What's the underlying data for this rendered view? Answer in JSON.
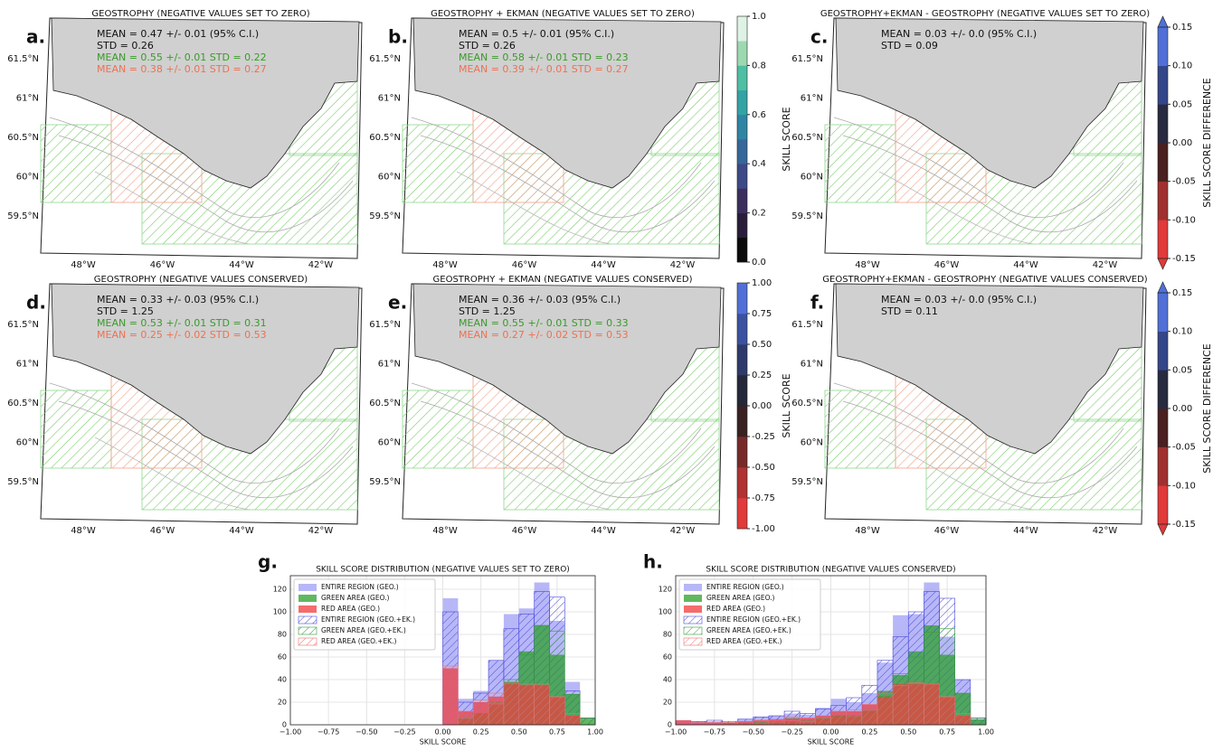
{
  "maps": [
    {
      "letter": "a.",
      "title": "GEOSTROPHY (NEGATIVE VALUES SET TO ZERO)",
      "stats": [
        {
          "text": "MEAN = 0.47 +/- 0.01 (95% C.I.)",
          "color": "#111111"
        },
        {
          "text": "STD = 0.26",
          "color": "#111111"
        },
        {
          "text": "MEAN = 0.55 +/- 0.01   STD = 0.22",
          "color": "#3a9a2a"
        },
        {
          "text": "MEAN = 0.38 +/- 0.01   STD = 0.27",
          "color": "#ef7050"
        }
      ]
    },
    {
      "letter": "b.",
      "title": "GEOSTROPHY + EKMAN (NEGATIVE VALUES SET TO ZERO)",
      "stats": [
        {
          "text": "MEAN = 0.5 +/- 0.01 (95% C.I.)",
          "color": "#111111"
        },
        {
          "text": "STD = 0.26",
          "color": "#111111"
        },
        {
          "text": "MEAN = 0.58 +/- 0.01   STD = 0.23",
          "color": "#3a9a2a"
        },
        {
          "text": "MEAN = 0.39 +/- 0.01   STD = 0.27",
          "color": "#ef7050"
        }
      ]
    },
    {
      "letter": "c.",
      "title": "GEOSTROPHY+EKMAN - GEOSTROPHY (NEGATIVE VALUES SET TO ZERO)",
      "stats": [
        {
          "text": "MEAN = 0.03 +/- 0.0 (95% C.I.)",
          "color": "#111111"
        },
        {
          "text": "STD = 0.09",
          "color": "#111111"
        }
      ]
    },
    {
      "letter": "d.",
      "title": "GEOSTROPHY (NEGATIVE VALUES CONSERVED)",
      "stats": [
        {
          "text": "MEAN = 0.33 +/- 0.03 (95% C.I.)",
          "color": "#111111"
        },
        {
          "text": "STD = 1.25",
          "color": "#111111"
        },
        {
          "text": "MEAN = 0.53 +/- 0.01   STD = 0.31",
          "color": "#3a9a2a"
        },
        {
          "text": "MEAN = 0.25 +/- 0.02   STD = 0.53",
          "color": "#ef7050"
        }
      ]
    },
    {
      "letter": "e.",
      "title": "GEOSTROPHY + EKMAN (NEGATIVE VALUES CONSERVED)",
      "stats": [
        {
          "text": "MEAN = 0.36 +/- 0.03 (95% C.I.)",
          "color": "#111111"
        },
        {
          "text": "STD = 1.25",
          "color": "#111111"
        },
        {
          "text": "MEAN = 0.55 +/- 0.01   STD = 0.33",
          "color": "#3a9a2a"
        },
        {
          "text": "MEAN = 0.27 +/- 0.02   STD = 0.53",
          "color": "#ef7050"
        }
      ]
    },
    {
      "letter": "f.",
      "title": "GEOSTROPHY+EKMAN - GEOSTROPHY (NEGATIVE VALUES CONSERVED)",
      "stats": [
        {
          "text": "MEAN = 0.03 +/- 0.0 (95% C.I.)",
          "color": "#111111"
        },
        {
          "text": "STD = 0.11",
          "color": "#111111"
        }
      ]
    }
  ],
  "map_ticks": {
    "lat": [
      "61.5°N",
      "61°N",
      "60.5°N",
      "60°N",
      "59.5°N"
    ],
    "lon": [
      "48°W",
      "46°W",
      "44°W",
      "42°W"
    ]
  },
  "colorbars": [
    {
      "label": "SKILL SCORE",
      "lim": [
        0,
        1
      ],
      "ticks": [
        {
          "value": 0,
          "label": "0.0"
        },
        0.2,
        0.4,
        0.6,
        0.8,
        {
          "value": 1,
          "label": "1.0"
        }
      ],
      "colors": [
        "#0b0b0b",
        "#2a1d3a",
        "#3b2f5e",
        "#3d4a86",
        "#36679a",
        "#2f85a3",
        "#33a3a6",
        "#4ebfa4",
        "#9ed8b1",
        "#def2e5"
      ]
    },
    {
      "label": "SKILL SCORE",
      "lim": [
        -1,
        1
      ],
      "ticks": [
        {
          "value": -1,
          "label": "-1.00"
        },
        {
          "value": -0.75,
          "label": "-0.75"
        },
        {
          "value": -0.5,
          "label": "-0.50"
        },
        {
          "value": -0.25,
          "label": "-0.25"
        },
        {
          "value": 0,
          "label": "0.00"
        },
        {
          "value": 0.25,
          "label": "0.25"
        },
        {
          "value": 0.5,
          "label": "0.50"
        },
        {
          "value": 0.75,
          "label": "0.75"
        },
        {
          "value": 1,
          "label": "1.00"
        }
      ],
      "colors": [
        "#e03a3a",
        "#b03232",
        "#782a2a",
        "#3a2222",
        "#242838",
        "#2e3a6a",
        "#3a52a0",
        "#5070d8"
      ]
    },
    {
      "label": "SKILL SCORE DIFFERENCE",
      "lim": [
        -0.15,
        0.15
      ],
      "ticks": [
        {
          "value": -0.15,
          "label": "-0.15"
        },
        {
          "value": -0.1,
          "label": "-0.10"
        },
        {
          "value": -0.05,
          "label": "-0.05"
        },
        {
          "value": 0,
          "label": "0.00"
        },
        {
          "value": 0.05,
          "label": "0.05"
        },
        {
          "value": 0.1,
          "label": "0.10"
        },
        {
          "value": 0.15,
          "label": "0.15"
        }
      ],
      "colors": [
        "#e03a3a",
        "#a03030",
        "#4a2020",
        "#282a40",
        "#34468a",
        "#5070d8"
      ]
    },
    {
      "label": "SKILL SCORE DIFFERENCE",
      "lim": [
        -0.15,
        0.15
      ],
      "ticks": [
        {
          "value": -0.15,
          "label": "-0.15"
        },
        {
          "value": -0.1,
          "label": "-0.10"
        },
        {
          "value": -0.05,
          "label": "-0.05"
        },
        {
          "value": 0,
          "label": "0.00"
        },
        {
          "value": 0.05,
          "label": "0.05"
        },
        {
          "value": 0.1,
          "label": "0.10"
        },
        {
          "value": 0.15,
          "label": "0.15"
        }
      ],
      "colors": [
        "#e03a3a",
        "#a03030",
        "#4a2020",
        "#282a40",
        "#34468a",
        "#5070d8"
      ]
    }
  ],
  "chart_data": [
    {
      "type": "histogram",
      "letter": "g.",
      "title": "SKILL SCORE DISTRIBUTION (NEGATIVE VALUES SET TO ZERO)",
      "x_label": "SKILL SCORE",
      "legend": "upper left",
      "grid": true,
      "bins": [
        -1.0,
        -0.9,
        -0.8,
        -0.7,
        -0.6,
        -0.5,
        -0.4,
        -0.3,
        -0.2,
        -0.1,
        0.0,
        0.1,
        0.2,
        0.3,
        0.4,
        0.5,
        0.6,
        0.7,
        0.8,
        0.9,
        1.0
      ],
      "xlim": [
        -1,
        1
      ],
      "ylim": [
        0,
        132
      ],
      "xticks": [
        {
          "value": -1,
          "label": "−1.00"
        },
        {
          "value": -0.75,
          "label": "−0.75"
        },
        {
          "value": -0.5,
          "label": "−0.50"
        },
        {
          "value": -0.25,
          "label": "−0.25"
        },
        {
          "value": 0,
          "label": "0.00"
        },
        {
          "value": 0.25,
          "label": "0.25"
        },
        {
          "value": 0.5,
          "label": "0.50"
        },
        {
          "value": 0.75,
          "label": "0.75"
        },
        {
          "value": 1,
          "label": "1.00"
        }
      ],
      "yticks": [
        0,
        20,
        40,
        60,
        80,
        100,
        120
      ],
      "series": [
        {
          "name": "ENTIRE REGION (GEO.)",
          "color": "#9f9ff5",
          "style": "filled",
          "values": [
            0,
            0,
            0,
            0,
            0,
            0,
            0,
            0,
            0,
            0,
            112,
            23,
            30,
            57,
            98,
            103,
            126,
            92,
            38,
            0
          ]
        },
        {
          "name": "GREEN AREA (GEO.)",
          "color": "#2ca02c",
          "style": "filled",
          "values": [
            0,
            0,
            0,
            0,
            0,
            0,
            0,
            0,
            0,
            0,
            0,
            5,
            10,
            18,
            38,
            65,
            88,
            62,
            27,
            6
          ]
        },
        {
          "name": "RED AREA (GEO.)",
          "color": "#f03c3c",
          "style": "filled",
          "values": [
            0,
            0,
            0,
            0,
            0,
            0,
            0,
            0,
            0,
            0,
            50,
            12,
            20,
            25,
            36,
            35,
            35,
            24,
            8,
            0
          ]
        },
        {
          "name": "ENTIRE REGION (GEO.+EK.)",
          "color": "#4848d8",
          "style": "hatched",
          "values": [
            0,
            0,
            0,
            0,
            0,
            0,
            0,
            0,
            0,
            0,
            100,
            20,
            28,
            57,
            85,
            98,
            118,
            113,
            30,
            6
          ]
        },
        {
          "name": "GREEN AREA (GEO.+EK.)",
          "color": "#3a9a3a",
          "style": "hatched",
          "values": [
            0,
            0,
            0,
            0,
            0,
            0,
            0,
            0,
            0,
            0,
            0,
            5,
            10,
            20,
            40,
            62,
            88,
            83,
            27,
            6
          ]
        },
        {
          "name": "RED AREA (GEO.+EK.)",
          "color": "#f07070",
          "style": "hatched",
          "values": [
            0,
            0,
            0,
            0,
            0,
            0,
            0,
            0,
            0,
            0,
            52,
            12,
            22,
            28,
            38,
            36,
            36,
            25,
            10,
            0
          ]
        }
      ]
    },
    {
      "type": "histogram",
      "letter": "h.",
      "title": "SKILL SCORE DISTRIBUTION (NEGATIVE VALUES CONSERVED)",
      "x_label": "SKILL SCORE",
      "legend": "upper left",
      "grid": true,
      "bins": [
        -1.0,
        -0.9,
        -0.8,
        -0.7,
        -0.6,
        -0.5,
        -0.4,
        -0.3,
        -0.2,
        -0.1,
        0.0,
        0.1,
        0.2,
        0.3,
        0.4,
        0.5,
        0.6,
        0.7,
        0.8,
        0.9,
        1.0
      ],
      "xlim": [
        -1,
        1
      ],
      "ylim": [
        0,
        132
      ],
      "xticks": [
        {
          "value": -1,
          "label": "−1.00"
        },
        {
          "value": -0.75,
          "label": "−0.75"
        },
        {
          "value": -0.5,
          "label": "−0.50"
        },
        {
          "value": -0.25,
          "label": "−0.25"
        },
        {
          "value": 0,
          "label": "0.00"
        },
        {
          "value": 0.25,
          "label": "0.25"
        },
        {
          "value": 0.5,
          "label": "0.50"
        },
        {
          "value": 0.75,
          "label": "0.75"
        },
        {
          "value": 1,
          "label": "1.00"
        }
      ],
      "yticks": [
        0,
        20,
        40,
        60,
        80,
        100,
        120
      ],
      "series": [
        {
          "name": "ENTIRE REGION (GEO.)",
          "color": "#9f9ff5",
          "style": "filled",
          "values": [
            4,
            3,
            3,
            2,
            5,
            7,
            8,
            10,
            9,
            15,
            23,
            20,
            28,
            55,
            97,
            98,
            126,
            78,
            40,
            5
          ]
        },
        {
          "name": "GREEN AREA (GEO.)",
          "color": "#2ca02c",
          "style": "filled",
          "values": [
            0,
            0,
            0,
            0,
            1,
            1,
            2,
            3,
            2,
            5,
            8,
            7,
            12,
            30,
            44,
            65,
            88,
            62,
            28,
            5
          ]
        },
        {
          "name": "RED AREA (GEO.)",
          "color": "#f03c3c",
          "style": "filled",
          "values": [
            4,
            2,
            2,
            2,
            3,
            4,
            5,
            6,
            6,
            8,
            12,
            12,
            18,
            25,
            36,
            36,
            36,
            24,
            8,
            0
          ]
        },
        {
          "name": "ENTIRE REGION (GEO.+EK.)",
          "color": "#4848d8",
          "style": "hatched",
          "values": [
            3,
            3,
            4,
            3,
            5,
            7,
            8,
            12,
            10,
            14,
            17,
            24,
            35,
            57,
            78,
            100,
            118,
            112,
            40,
            6
          ]
        },
        {
          "name": "GREEN AREA (GEO.+EK.)",
          "color": "#3a9a3a",
          "style": "hatched",
          "values": [
            0,
            0,
            0,
            1,
            1,
            2,
            3,
            5,
            4,
            5,
            8,
            8,
            12,
            25,
            45,
            60,
            82,
            85,
            28,
            6
          ]
        },
        {
          "name": "RED AREA (GEO.+EK.)",
          "color": "#f07070",
          "style": "hatched",
          "values": [
            3,
            2,
            2,
            2,
            3,
            4,
            4,
            7,
            6,
            8,
            12,
            13,
            18,
            28,
            35,
            37,
            36,
            25,
            10,
            0
          ]
        }
      ]
    }
  ]
}
